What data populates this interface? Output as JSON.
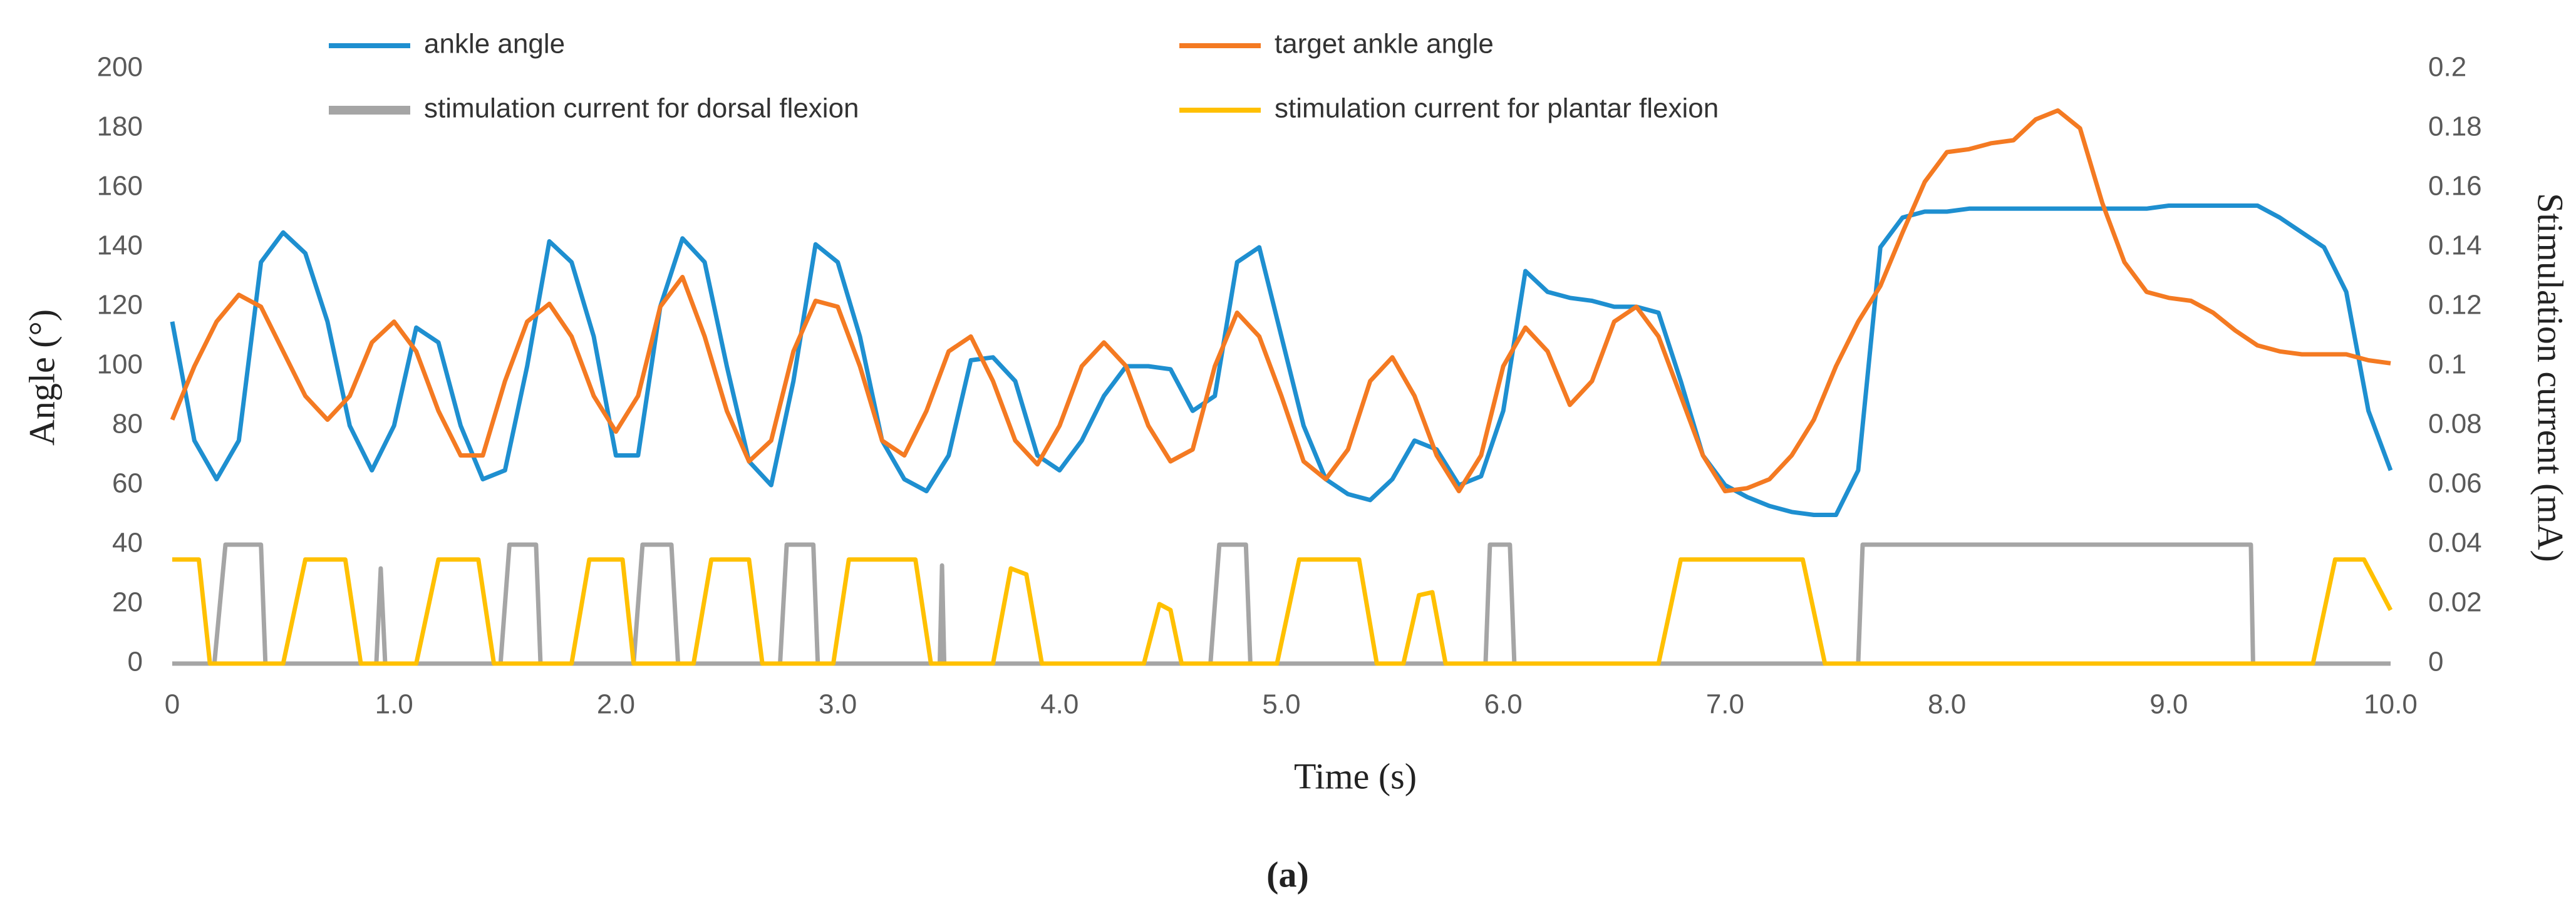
{
  "chart_data": {
    "type": "line",
    "x_label": "Time (s)",
    "y_label": "Angle (°)",
    "y2_label": "Stimulation current (mA)",
    "caption": "(a)",
    "x": [
      0,
      0.1,
      0.2,
      0.3,
      0.4,
      0.5,
      0.6,
      0.7,
      0.8,
      0.9,
      1.0,
      1.1,
      1.2,
      1.3,
      1.4,
      1.5,
      1.6,
      1.7,
      1.8,
      1.9,
      2.0,
      2.1,
      2.2,
      2.3,
      2.4,
      2.5,
      2.6,
      2.7,
      2.8,
      2.9,
      3.0,
      3.1,
      3.2,
      3.3,
      3.4,
      3.5,
      3.6,
      3.7,
      3.8,
      3.9,
      4.0,
      4.1,
      4.2,
      4.3,
      4.4,
      4.5,
      4.6,
      4.7,
      4.8,
      4.9,
      5.0,
      5.1,
      5.2,
      5.3,
      5.4,
      5.5,
      5.6,
      5.7,
      5.8,
      5.9,
      6.0,
      6.1,
      6.2,
      6.3,
      6.4,
      6.5,
      6.6,
      6.7,
      6.8,
      6.9,
      7.0,
      7.1,
      7.2,
      7.3,
      7.4,
      7.5,
      7.6,
      7.7,
      7.8,
      7.9,
      8.0,
      8.1,
      8.2,
      8.3,
      8.4,
      8.5,
      8.6,
      8.7,
      8.8,
      8.9,
      9.0,
      9.1,
      9.2,
      9.3,
      9.4,
      9.5,
      9.6,
      9.7,
      9.8,
      9.9,
      10.0
    ],
    "series": [
      {
        "name": "ankle angle",
        "color": "#1e8fd0",
        "values": [
          115,
          75,
          62,
          75,
          135,
          145,
          138,
          115,
          80,
          65,
          80,
          113,
          108,
          80,
          62,
          65,
          100,
          142,
          135,
          110,
          70,
          70,
          120,
          143,
          135,
          100,
          68,
          60,
          95,
          141,
          135,
          110,
          75,
          62,
          58,
          70,
          102,
          103,
          95,
          70,
          65,
          75,
          90,
          100,
          100,
          99,
          85,
          90,
          135,
          140,
          110,
          80,
          62,
          57,
          55,
          62,
          75,
          72,
          60,
          63,
          85,
          132,
          125,
          123,
          122,
          120,
          120,
          118,
          95,
          70,
          60,
          56,
          53,
          51,
          50,
          50,
          65,
          140,
          150,
          152,
          152,
          153,
          153,
          153,
          153,
          153,
          153,
          153,
          153,
          153,
          154,
          154,
          154,
          154,
          154,
          150,
          145,
          140,
          125,
          85,
          65
        ]
      },
      {
        "name": "target ankle angle",
        "color": "#f47a22",
        "values": [
          82,
          100,
          115,
          124,
          120,
          105,
          90,
          82,
          90,
          108,
          115,
          105,
          85,
          70,
          70,
          95,
          115,
          121,
          110,
          90,
          78,
          90,
          120,
          130,
          110,
          85,
          68,
          75,
          105,
          122,
          120,
          100,
          75,
          70,
          85,
          105,
          110,
          95,
          75,
          67,
          80,
          100,
          108,
          100,
          80,
          68,
          72,
          100,
          118,
          110,
          90,
          68,
          62,
          72,
          95,
          103,
          90,
          70,
          58,
          70,
          100,
          113,
          105,
          87,
          95,
          115,
          120,
          110,
          90,
          70,
          58,
          59,
          62,
          70,
          82,
          100,
          115,
          127,
          145,
          162,
          172,
          173,
          175,
          176,
          183,
          186,
          180,
          155,
          135,
          125,
          123,
          122,
          118,
          112,
          107,
          105,
          104,
          104,
          104,
          102,
          101
        ]
      },
      {
        "name": "stimulation current for dorsal flexion",
        "color": "#a5a5a5",
        "axis": "y2",
        "x": [
          0,
          0.19,
          0.24,
          0.4,
          0.42,
          0.92,
          0.94,
          0.96,
          1.48,
          1.52,
          1.64,
          1.66,
          2.08,
          2.12,
          2.25,
          2.28,
          2.74,
          2.77,
          2.89,
          2.91,
          3.46,
          3.47,
          3.48,
          4.68,
          4.72,
          4.84,
          4.86,
          5.92,
          5.94,
          6.03,
          6.05,
          7.6,
          7.62,
          9.37,
          9.38,
          10.0
        ],
        "values": [
          0,
          0,
          0.04,
          0.04,
          0,
          0,
          0.032,
          0,
          0,
          0.04,
          0.04,
          0,
          0,
          0.04,
          0.04,
          0,
          0,
          0.04,
          0.04,
          0,
          0,
          0.033,
          0,
          0,
          0.04,
          0.04,
          0,
          0,
          0.04,
          0.04,
          0,
          0,
          0.04,
          0.04,
          0,
          0
        ]
      },
      {
        "name": "stimulation current for plantar flexion",
        "color": "#ffc000",
        "axis": "y2",
        "x": [
          0,
          0.12,
          0.17,
          0.5,
          0.6,
          0.78,
          0.85,
          1.1,
          1.2,
          1.38,
          1.45,
          1.8,
          1.88,
          2.03,
          2.08,
          2.35,
          2.43,
          2.6,
          2.66,
          2.98,
          3.05,
          3.35,
          3.42,
          3.7,
          3.78,
          3.85,
          3.92,
          4.38,
          4.45,
          4.5,
          4.55,
          4.98,
          5.08,
          5.35,
          5.43,
          5.55,
          5.62,
          5.68,
          5.74,
          6.7,
          6.8,
          7.35,
          7.45,
          9.65,
          9.75,
          9.88,
          10.0
        ],
        "values": [
          0.035,
          0.035,
          0,
          0,
          0.035,
          0.035,
          0,
          0,
          0.035,
          0.035,
          0,
          0,
          0.035,
          0.035,
          0,
          0,
          0.035,
          0.035,
          0,
          0,
          0.035,
          0.035,
          0,
          0,
          0.032,
          0.03,
          0,
          0,
          0.02,
          0.018,
          0,
          0,
          0.035,
          0.035,
          0,
          0,
          0.023,
          0.024,
          0,
          0,
          0.035,
          0.035,
          0,
          0,
          0.035,
          0.035,
          0.018
        ]
      }
    ],
    "xlim": [
      0,
      10
    ],
    "xticks": [
      0,
      {
        "value": 1,
        "label": "1.0"
      },
      {
        "value": 2,
        "label": "2.0"
      },
      {
        "value": 3,
        "label": "3.0"
      },
      {
        "value": 4,
        "label": "4.0"
      },
      {
        "value": 5,
        "label": "5.0"
      },
      {
        "value": 6,
        "label": "6.0"
      },
      {
        "value": 7,
        "label": "7.0"
      },
      {
        "value": 8,
        "label": "8.0"
      },
      {
        "value": 9,
        "label": "9.0"
      },
      {
        "value": 10,
        "label": "10.0"
      }
    ],
    "ylim": [
      0,
      200
    ],
    "yticks": [
      0,
      20,
      40,
      60,
      80,
      100,
      120,
      140,
      160,
      180,
      200
    ],
    "y2lim": [
      0,
      0.2
    ],
    "y2ticks": [
      0,
      0.02,
      0.04,
      0.06,
      0.08,
      0.1,
      0.12,
      0.14,
      0.16,
      0.18,
      0.2
    ],
    "grid": false
  }
}
